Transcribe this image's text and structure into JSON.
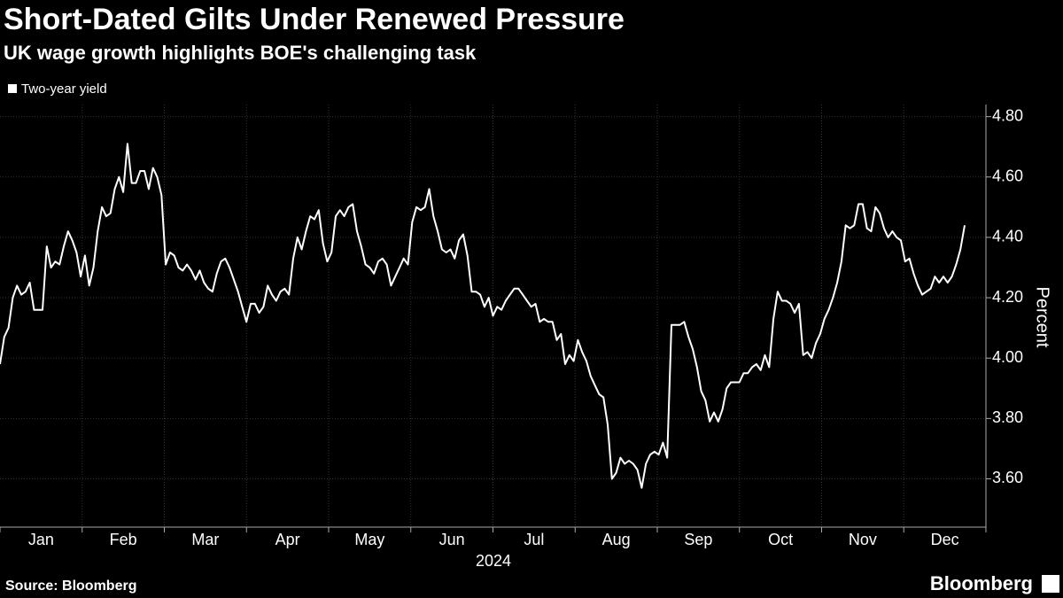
{
  "chart_data": {
    "type": "line",
    "title": "Short-Dated Gilts Under Renewed Pressure",
    "subtitle": "UK wage growth highlights BOE's challenging task",
    "x_tick_labels": [
      "Jan",
      "Feb",
      "Mar",
      "Apr",
      "May",
      "Jun",
      "Jul",
      "Aug",
      "Sep",
      "Oct",
      "Nov",
      "Dec"
    ],
    "x_label": "2024",
    "y_label": "Percent",
    "source": "Source: Bloomberg",
    "brand": "Bloomberg",
    "ylim": [
      3.44,
      4.84
    ],
    "yticks": [
      {
        "value": 3.6,
        "label": "3.60"
      },
      {
        "value": 3.8,
        "label": "3.80"
      },
      {
        "value": 4.0,
        "label": "4.00"
      },
      {
        "value": 4.2,
        "label": "4.20"
      },
      {
        "value": 4.4,
        "label": "4.40"
      },
      {
        "value": 4.6,
        "label": "4.60"
      },
      {
        "value": 4.8,
        "label": "4.80"
      }
    ],
    "grid": true,
    "series": [
      {
        "name": "Two-year yield",
        "color": "#ffffff",
        "values": [
          3.98,
          4.07,
          4.1,
          4.2,
          4.24,
          4.21,
          4.22,
          4.25,
          4.16,
          4.16,
          4.16,
          4.37,
          4.3,
          4.32,
          4.31,
          4.37,
          4.42,
          4.39,
          4.35,
          4.27,
          4.34,
          4.24,
          4.3,
          4.42,
          4.5,
          4.47,
          4.48,
          4.56,
          4.6,
          4.55,
          4.71,
          4.58,
          4.58,
          4.62,
          4.62,
          4.56,
          4.63,
          4.6,
          4.54,
          4.31,
          4.35,
          4.34,
          4.3,
          4.29,
          4.31,
          4.29,
          4.26,
          4.29,
          4.25,
          4.23,
          4.22,
          4.28,
          4.32,
          4.33,
          4.3,
          4.26,
          4.22,
          4.17,
          4.12,
          4.18,
          4.18,
          4.15,
          4.17,
          4.24,
          4.21,
          4.19,
          4.22,
          4.23,
          4.21,
          4.33,
          4.4,
          4.36,
          4.42,
          4.47,
          4.46,
          4.49,
          4.38,
          4.32,
          4.35,
          4.47,
          4.49,
          4.47,
          4.5,
          4.51,
          4.42,
          4.37,
          4.31,
          4.3,
          4.28,
          4.32,
          4.33,
          4.31,
          4.24,
          4.27,
          4.3,
          4.33,
          4.31,
          4.45,
          4.5,
          4.49,
          4.5,
          4.56,
          4.47,
          4.42,
          4.36,
          4.35,
          4.36,
          4.33,
          4.39,
          4.41,
          4.34,
          4.22,
          4.22,
          4.21,
          4.17,
          4.2,
          4.14,
          4.17,
          4.16,
          4.19,
          4.21,
          4.23,
          4.23,
          4.21,
          4.19,
          4.17,
          4.18,
          4.12,
          4.13,
          4.12,
          4.12,
          4.06,
          4.08,
          3.98,
          4.01,
          3.99,
          4.06,
          4.02,
          3.99,
          3.94,
          3.91,
          3.88,
          3.87,
          3.78,
          3.6,
          3.62,
          3.67,
          3.65,
          3.66,
          3.65,
          3.63,
          3.57,
          3.65,
          3.68,
          3.69,
          3.68,
          3.72,
          3.67,
          4.11,
          4.11,
          4.11,
          4.12,
          4.07,
          4.03,
          3.97,
          3.89,
          3.86,
          3.79,
          3.82,
          3.79,
          3.83,
          3.9,
          3.92,
          3.92,
          3.92,
          3.95,
          3.95,
          3.97,
          3.98,
          3.96,
          4.01,
          3.97,
          4.13,
          4.22,
          4.19,
          4.19,
          4.18,
          4.15,
          4.18,
          4.01,
          4.02,
          4.0,
          4.05,
          4.08,
          4.13,
          4.16,
          4.2,
          4.25,
          4.32,
          4.44,
          4.43,
          4.44,
          4.51,
          4.51,
          4.43,
          4.42,
          4.5,
          4.48,
          4.43,
          4.4,
          4.42,
          4.4,
          4.39,
          4.32,
          4.33,
          4.28,
          4.24,
          4.21,
          4.22,
          4.23,
          4.27,
          4.25,
          4.27,
          4.25,
          4.27,
          4.31,
          4.36,
          4.44
        ]
      }
    ]
  }
}
